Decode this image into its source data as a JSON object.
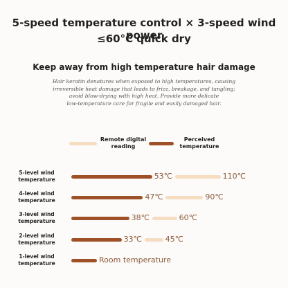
{
  "chart_data": {
    "type": "bar",
    "title_lines": [
      "5-speed temperature control × 3-speed wind power",
      "≤60°C quick dry"
    ],
    "heading": "Keep away from high temperature hair damage",
    "description_lines": [
      "Hair keratin denatures when exposed to high temperatures, causing",
      "irreversible heat damage that leads to frizz, breakage, and tangling;",
      "avoid blow-drying with high heat. Provide more delicate",
      "low-temperature care for fragile and easily damaged hair."
    ],
    "categories": [
      "5-level wind temperature",
      "4-level wind temperature",
      "3-level wind temperature",
      "2-level wind temperature",
      "1-level wind temperature"
    ],
    "series": [
      {
        "name": "Remote digital reading",
        "color": "#f6dcc0",
        "values": [
          110,
          90,
          60,
          45,
          null
        ],
        "value_labels": [
          "110℃",
          "90℃",
          "60℃",
          "45℃",
          null
        ]
      },
      {
        "name": "Perceived temperature",
        "color": "#9e5027",
        "values": [
          53,
          47,
          38,
          33,
          null
        ],
        "value_labels": [
          "53℃",
          "47℃",
          "38℃",
          "33℃",
          "Room temperature"
        ]
      }
    ]
  }
}
